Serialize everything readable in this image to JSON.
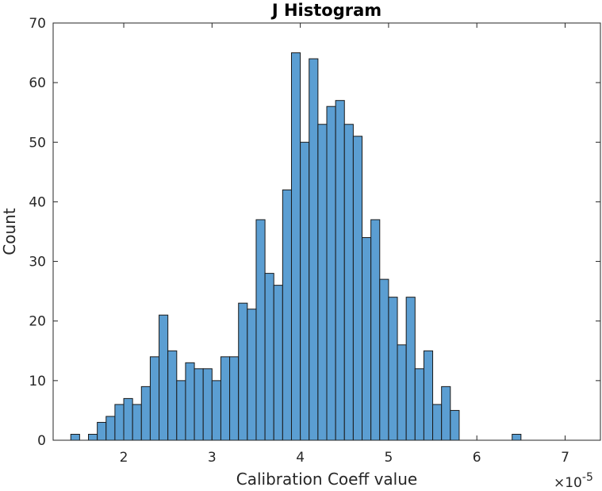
{
  "chart_data": {
    "type": "bar",
    "title": "J Histogram",
    "xlabel": "Calibration Coeff value",
    "ylabel": "Count",
    "x_exponent_label": "×10",
    "x_exponent_power": "-5",
    "xlim": [
      1.2,
      7.4
    ],
    "ylim": [
      0,
      70
    ],
    "x_ticks": [
      2,
      3,
      4,
      5,
      6,
      7
    ],
    "y_ticks": [
      0,
      10,
      20,
      30,
      40,
      50,
      60,
      70
    ],
    "x_tick_labels": [
      "2",
      "3",
      "4",
      "5",
      "6",
      "7"
    ],
    "y_tick_labels": [
      "0",
      "10",
      "20",
      "30",
      "40",
      "50",
      "60",
      "70"
    ],
    "bin_start": 1.4,
    "bin_width": 0.1,
    "values": [
      1,
      0,
      1,
      3,
      4,
      6,
      7,
      6,
      9,
      14,
      21,
      15,
      10,
      13,
      12,
      12,
      10,
      14,
      14,
      23,
      22,
      37,
      28,
      26,
      42,
      65,
      50,
      64,
      53,
      56,
      57,
      53,
      51,
      34,
      37,
      27,
      24,
      16,
      24,
      12,
      15,
      6,
      9,
      5,
      0,
      0,
      0,
      0,
      0,
      0,
      1
    ],
    "grid": false,
    "bar_color": "#5b9ed2",
    "edge_color": "#1a1a1a"
  }
}
